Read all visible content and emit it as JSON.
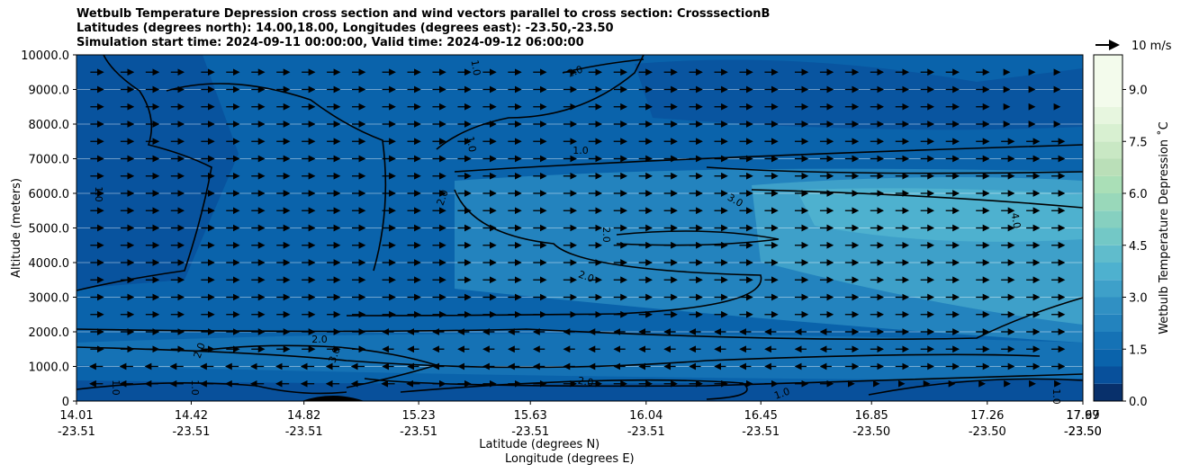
{
  "title_lines": [
    "Wetbulb Temperature Depression cross section and wind vectors parallel to cross section: CrosssectionB",
    "Latitudes (degrees north): 14.00,18.00, Longitudes (degrees east): -23.50,-23.50",
    "Simulation start time: 2024-09-11 00:00:00, Valid time: 2024-09-12 06:00:00"
  ],
  "chart_data": {
    "type": "heatmap",
    "ylabel": "Altitude (meters)",
    "xlabel_line1": "Latitude (degrees N)",
    "xlabel_line2": "Longitude (degrees E)",
    "ylim": [
      0,
      10000
    ],
    "y_ticks": [
      "0",
      "1000.0",
      "2000.0",
      "3000.0",
      "4000.0",
      "5000.0",
      "6000.0",
      "7000.0",
      "8000.0",
      "9000.0",
      "10000.0"
    ],
    "x_ticks": [
      {
        "lat": "14.01",
        "lon": "-23.51"
      },
      {
        "lat": "14.42",
        "lon": "-23.51"
      },
      {
        "lat": "14.82",
        "lon": "-23.51"
      },
      {
        "lat": "15.23",
        "lon": "-23.51"
      },
      {
        "lat": "15.63",
        "lon": "-23.51"
      },
      {
        "lat": "16.04",
        "lon": "-23.51"
      },
      {
        "lat": "16.45",
        "lon": "-23.51"
      },
      {
        "lat": "16.85",
        "lon": "-23.50"
      },
      {
        "lat": "17.26",
        "lon": "-23.50"
      },
      {
        "lat": "17.67",
        "lon": "-23.50"
      },
      {
        "lat": "17.99",
        "lon": "-23.50"
      }
    ],
    "horizontal_grid": true,
    "colorbar": {
      "label": "Wetbulb Temperature Depression ˚C",
      "range": [
        0,
        10
      ],
      "ticks": [
        "0.0",
        "1.5",
        "3.0",
        "4.5",
        "6.0",
        "7.5",
        "9.0"
      ],
      "colors": [
        "#08306b",
        "#08509b",
        "#0a63ab",
        "#1572b5",
        "#2383be",
        "#3090c3",
        "#3ea0c9",
        "#4eb1cf",
        "#60bccc",
        "#73c8c6",
        "#86d0c0",
        "#99d8ba",
        "#aadfb7",
        "#badfb8",
        "#c9e8c4",
        "#d8f0d1",
        "#e7f6df",
        "#f3fbec"
      ],
      "levels": [
        0,
        0.5,
        1.0,
        1.5,
        2.0,
        2.5,
        3.0,
        3.5,
        4.0,
        4.5,
        5.0,
        5.5,
        6.0,
        6.5,
        7.0,
        7.5,
        8.0,
        8.5,
        10.0
      ]
    },
    "contour_labels": [
      "1.0",
      "1.0",
      "1.0",
      "1.0",
      "1.0",
      "1.0",
      "1.0",
      "1.0",
      "1.0",
      "2.0",
      "2.0",
      "2.0",
      "2.0",
      "2.0",
      "2.0",
      "3.0",
      "3.0",
      "4.0"
    ],
    "wind_key": {
      "label": "10 m/s"
    },
    "wind_x_positions": [
      0.02,
      0.05,
      0.075,
      0.1,
      0.13,
      0.155,
      0.18,
      0.205,
      0.23,
      0.255,
      0.28,
      0.31,
      0.335,
      0.36,
      0.385,
      0.41,
      0.435,
      0.46,
      0.49,
      0.515,
      0.54,
      0.565,
      0.59,
      0.615,
      0.64,
      0.665,
      0.69,
      0.72,
      0.745,
      0.77,
      0.795,
      0.82,
      0.845,
      0.87,
      0.9,
      0.925,
      0.95,
      0.975
    ],
    "wind_y_altitudes": [
      500,
      1000,
      1500,
      2000,
      2500,
      3000,
      3500,
      4000,
      4500,
      5000,
      5500,
      6000,
      6500,
      7000,
      7500,
      8000,
      8500,
      9000,
      9500
    ]
  }
}
